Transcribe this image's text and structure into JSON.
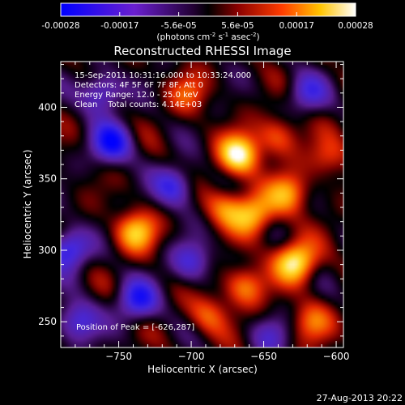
{
  "colorbar": {
    "ticks": [
      "-0.00028",
      "-0.00017",
      "-5.6e-05",
      "5.6e-05",
      "0.00017",
      "0.00028"
    ],
    "unit_prefix": "(photons cm",
    "unit_sup1": "-2",
    "unit_mid": " s",
    "unit_sup2": "-1",
    "unit_mid2": " asec",
    "unit_sup3": "-2",
    "unit_suffix": ")",
    "range": [
      -0.00028,
      0.00028
    ]
  },
  "footer": {
    "date": "27-Aug-2013 20:22"
  },
  "chart_data": {
    "type": "heatmap",
    "title": "Reconstructed RHESSI Image",
    "xlabel": "Heliocentric X (arcsec)",
    "ylabel": "Heliocentric Y (arcsec)",
    "xlim": [
      -790,
      -595
    ],
    "ylim": [
      232,
      432
    ],
    "xticks": [
      -750,
      -700,
      -650,
      -600
    ],
    "yticks": [
      250,
      300,
      350,
      400
    ],
    "xtick_labels": [
      "−750",
      "−700",
      "−650",
      "−600"
    ],
    "ytick_labels": [
      "250",
      "300",
      "350",
      "400"
    ],
    "annotations": [
      "15-Sep-2011 10:31:16.000 to 10:33:24.000",
      "Detectors: 4F 5F 6F 7F 8F, Att 0",
      "Energy Range: 12.0 - 25.0 keV",
      "Clean    Total counts: 4.14E+03"
    ],
    "peak_label": "Position of Peak = [-626,287]",
    "peak_position": [
      -626,
      287
    ],
    "colormap": "blue-purple-red-yellow-white",
    "sources": [
      {
        "x": -667,
        "y": 367,
        "amp": 1.0
      },
      {
        "x": -628,
        "y": 292,
        "amp": 1.0
      },
      {
        "x": -657,
        "y": 325,
        "amp": 0.75
      },
      {
        "x": -663,
        "y": 275,
        "amp": 0.6
      },
      {
        "x": -633,
        "y": 340,
        "amp": 0.65
      },
      {
        "x": -640,
        "y": 380,
        "amp": 0.5
      },
      {
        "x": -617,
        "y": 250,
        "amp": 0.5
      },
      {
        "x": -676,
        "y": 330,
        "amp": 0.5
      },
      {
        "x": -688,
        "y": 255,
        "amp": 0.45
      },
      {
        "x": -605,
        "y": 365,
        "amp": 0.4
      },
      {
        "x": -738,
        "y": 313,
        "amp": 0.75
      },
      {
        "x": -702,
        "y": 410,
        "amp": 0.4
      },
      {
        "x": -755,
        "y": 375,
        "amp": -0.9
      },
      {
        "x": -785,
        "y": 300,
        "amp": -0.85
      },
      {
        "x": -737,
        "y": 265,
        "amp": -0.8
      },
      {
        "x": -762,
        "y": 410,
        "amp": -0.7
      },
      {
        "x": -712,
        "y": 345,
        "amp": -0.7
      },
      {
        "x": -620,
        "y": 410,
        "amp": -0.55
      },
      {
        "x": -700,
        "y": 292,
        "amp": -0.6
      },
      {
        "x": -778,
        "y": 250,
        "amp": -0.7
      },
      {
        "x": -645,
        "y": 240,
        "amp": -0.4
      }
    ]
  }
}
